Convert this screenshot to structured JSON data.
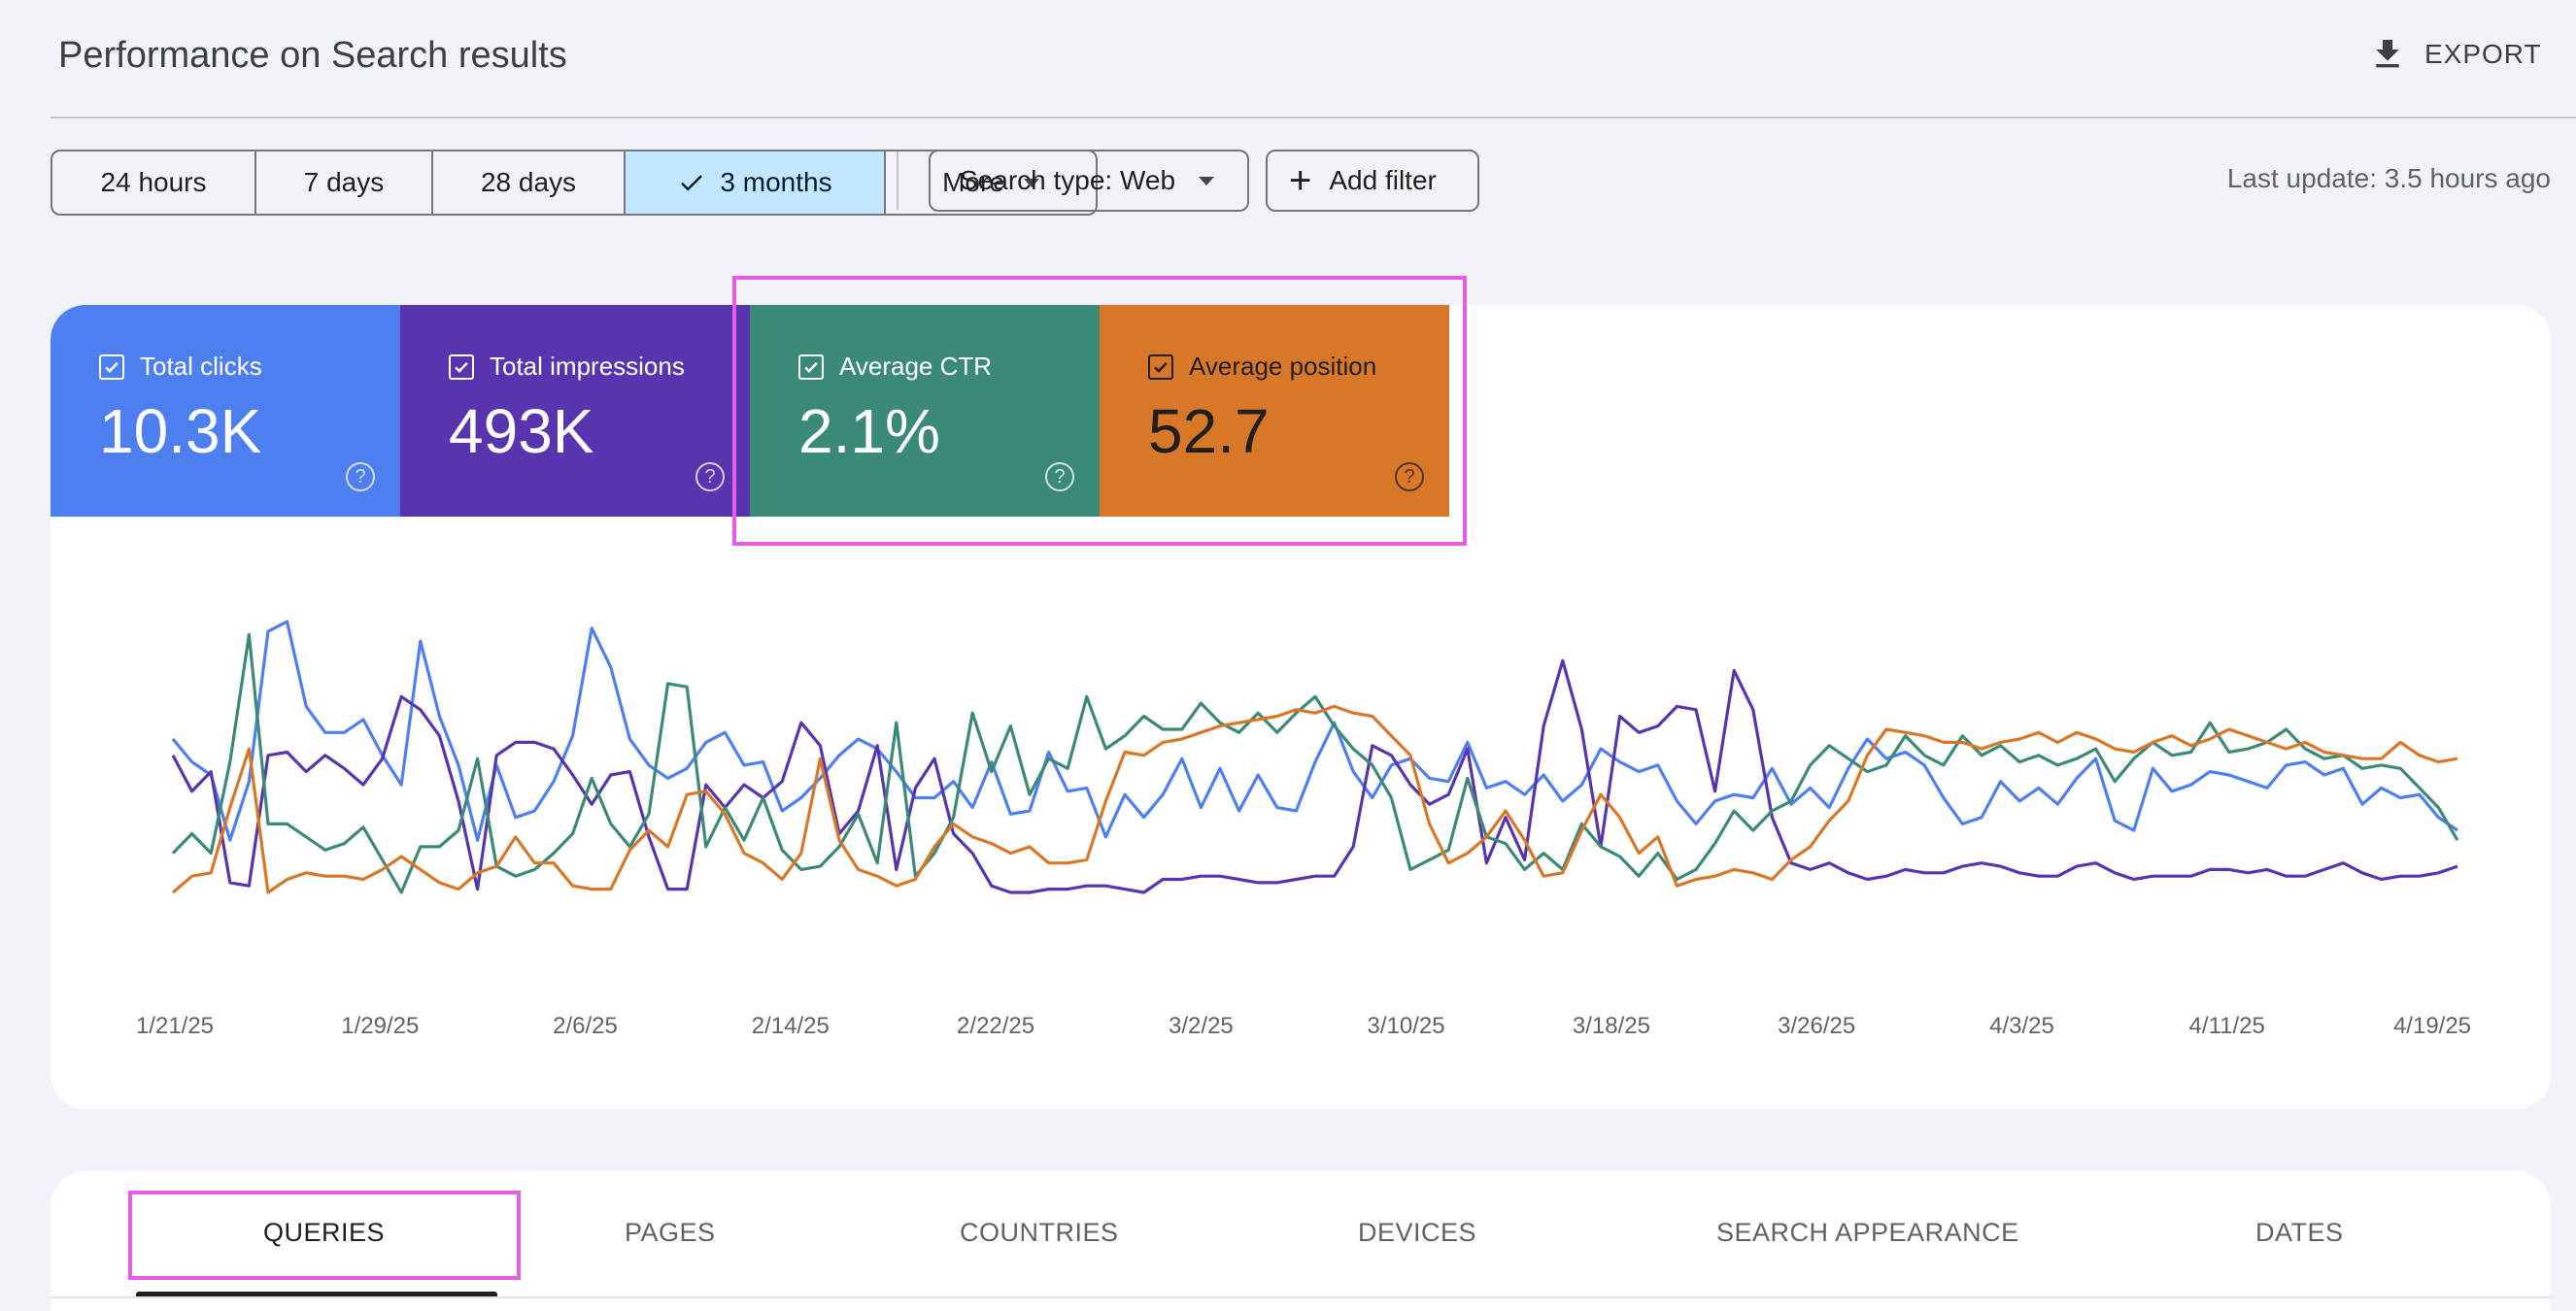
{
  "header": {
    "title": "Performance on Search results",
    "export_label": "EXPORT"
  },
  "toolbar": {
    "date_ranges": [
      "24 hours",
      "7 days",
      "28 days",
      "3 months",
      "More"
    ],
    "selected_range": "3 months",
    "search_type": "Search type: Web",
    "add_filter": "Add filter",
    "last_update": "Last update: 3.5 hours ago"
  },
  "metrics": [
    {
      "label": "Total clicks",
      "value": "10.3K",
      "color": "#4e7ff0",
      "checked": true
    },
    {
      "label": "Total impressions",
      "value": "493K",
      "color": "#5835ae",
      "checked": true
    },
    {
      "label": "Average CTR",
      "value": "2.1%",
      "color": "#3b8a78",
      "checked": true
    },
    {
      "label": "Average position",
      "value": "52.7",
      "color": "#d97728",
      "checked": true
    }
  ],
  "highlight_color": "#e85be7",
  "chart_data": {
    "type": "line",
    "x_ticks": [
      "1/21/25",
      "1/29/25",
      "2/6/25",
      "2/14/25",
      "2/22/25",
      "3/2/25",
      "3/10/25",
      "3/18/25",
      "3/26/25",
      "4/3/25",
      "4/11/25",
      "4/19/25"
    ],
    "grid": false,
    "series": [
      {
        "name": "Total clicks",
        "color": "#4e7ff0",
        "values": [
          0.61,
          0.54,
          0.5,
          0.3,
          0.48,
          0.94,
          0.97,
          0.71,
          0.63,
          0.63,
          0.67,
          0.56,
          0.47,
          0.91,
          0.68,
          0.53,
          0.3,
          0.53,
          0.37,
          0.39,
          0.48,
          0.62,
          0.95,
          0.83,
          0.61,
          0.53,
          0.49,
          0.52,
          0.6,
          0.63,
          0.53,
          0.54,
          0.39,
          0.43,
          0.49,
          0.56,
          0.61,
          0.58,
          0.51,
          0.43,
          0.43,
          0.48,
          0.4,
          0.54,
          0.38,
          0.39,
          0.57,
          0.45,
          0.46,
          0.31,
          0.44,
          0.37,
          0.44,
          0.55,
          0.4,
          0.52,
          0.39,
          0.5,
          0.4,
          0.39,
          0.54,
          0.66,
          0.51,
          0.43,
          0.53,
          0.55,
          0.49,
          0.48,
          0.6,
          0.46,
          0.48,
          0.44,
          0.5,
          0.42,
          0.47,
          0.58,
          0.54,
          0.51,
          0.53,
          0.42,
          0.35,
          0.42,
          0.44,
          0.43,
          0.52,
          0.41,
          0.46,
          0.4,
          0.52,
          0.61,
          0.55,
          0.57,
          0.53,
          0.43,
          0.35,
          0.37,
          0.48,
          0.42,
          0.46,
          0.41,
          0.49,
          0.55,
          0.36,
          0.33,
          0.52,
          0.45,
          0.47,
          0.51,
          0.5,
          0.48,
          0.46,
          0.53,
          0.54,
          0.5,
          0.52,
          0.41,
          0.46,
          0.43,
          0.44,
          0.37,
          0.33
        ]
      },
      {
        "name": "Total impressions",
        "color": "#5835ae",
        "values": [
          0.56,
          0.45,
          0.51,
          0.17,
          0.16,
          0.56,
          0.57,
          0.51,
          0.56,
          0.52,
          0.47,
          0.55,
          0.74,
          0.7,
          0.62,
          0.42,
          0.15,
          0.56,
          0.6,
          0.6,
          0.58,
          0.5,
          0.41,
          0.5,
          0.51,
          0.31,
          0.15,
          0.15,
          0.47,
          0.4,
          0.47,
          0.43,
          0.48,
          0.66,
          0.59,
          0.32,
          0.39,
          0.59,
          0.21,
          0.46,
          0.55,
          0.32,
          0.26,
          0.16,
          0.14,
          0.14,
          0.15,
          0.15,
          0.16,
          0.16,
          0.15,
          0.14,
          0.18,
          0.18,
          0.19,
          0.19,
          0.18,
          0.17,
          0.17,
          0.18,
          0.19,
          0.19,
          0.28,
          0.59,
          0.56,
          0.47,
          0.41,
          0.44,
          0.58,
          0.23,
          0.37,
          0.24,
          0.65,
          0.85,
          0.64,
          0.28,
          0.68,
          0.63,
          0.65,
          0.71,
          0.7,
          0.45,
          0.82,
          0.7,
          0.37,
          0.23,
          0.21,
          0.23,
          0.2,
          0.18,
          0.19,
          0.21,
          0.2,
          0.2,
          0.22,
          0.23,
          0.22,
          0.2,
          0.19,
          0.19,
          0.22,
          0.23,
          0.2,
          0.18,
          0.19,
          0.19,
          0.19,
          0.21,
          0.21,
          0.2,
          0.21,
          0.19,
          0.19,
          0.21,
          0.23,
          0.2,
          0.18,
          0.19,
          0.19,
          0.2,
          0.22
        ]
      },
      {
        "name": "Average CTR",
        "color": "#3b8a78",
        "values": [
          0.26,
          0.32,
          0.26,
          0.54,
          0.93,
          0.35,
          0.35,
          0.31,
          0.27,
          0.29,
          0.34,
          0.24,
          0.14,
          0.28,
          0.28,
          0.33,
          0.55,
          0.22,
          0.19,
          0.21,
          0.26,
          0.32,
          0.49,
          0.35,
          0.28,
          0.38,
          0.78,
          0.77,
          0.28,
          0.4,
          0.3,
          0.43,
          0.27,
          0.21,
          0.22,
          0.28,
          0.38,
          0.23,
          0.66,
          0.19,
          0.26,
          0.37,
          0.69,
          0.51,
          0.65,
          0.44,
          0.55,
          0.52,
          0.74,
          0.58,
          0.62,
          0.68,
          0.64,
          0.64,
          0.72,
          0.66,
          0.63,
          0.69,
          0.63,
          0.69,
          0.74,
          0.65,
          0.58,
          0.53,
          0.43,
          0.21,
          0.24,
          0.27,
          0.49,
          0.31,
          0.29,
          0.21,
          0.26,
          0.21,
          0.35,
          0.28,
          0.25,
          0.19,
          0.26,
          0.18,
          0.21,
          0.29,
          0.39,
          0.33,
          0.39,
          0.42,
          0.53,
          0.59,
          0.55,
          0.51,
          0.53,
          0.62,
          0.56,
          0.53,
          0.62,
          0.56,
          0.59,
          0.54,
          0.56,
          0.53,
          0.55,
          0.58,
          0.48,
          0.55,
          0.6,
          0.56,
          0.57,
          0.66,
          0.57,
          0.58,
          0.6,
          0.64,
          0.58,
          0.55,
          0.56,
          0.52,
          0.53,
          0.52,
          0.46,
          0.4,
          0.3
        ]
      },
      {
        "name": "Average position",
        "color": "#d97728",
        "values": [
          0.14,
          0.19,
          0.2,
          0.4,
          0.58,
          0.14,
          0.18,
          0.2,
          0.19,
          0.19,
          0.18,
          0.21,
          0.25,
          0.21,
          0.17,
          0.15,
          0.2,
          0.22,
          0.31,
          0.23,
          0.23,
          0.16,
          0.15,
          0.15,
          0.27,
          0.33,
          0.28,
          0.44,
          0.45,
          0.38,
          0.26,
          0.23,
          0.18,
          0.26,
          0.55,
          0.3,
          0.21,
          0.19,
          0.16,
          0.18,
          0.28,
          0.35,
          0.31,
          0.29,
          0.26,
          0.28,
          0.23,
          0.23,
          0.24,
          0.42,
          0.57,
          0.56,
          0.6,
          0.61,
          0.63,
          0.65,
          0.66,
          0.67,
          0.68,
          0.7,
          0.69,
          0.71,
          0.69,
          0.68,
          0.62,
          0.56,
          0.35,
          0.23,
          0.26,
          0.31,
          0.39,
          0.3,
          0.19,
          0.2,
          0.33,
          0.44,
          0.37,
          0.26,
          0.31,
          0.16,
          0.18,
          0.19,
          0.21,
          0.2,
          0.18,
          0.24,
          0.28,
          0.36,
          0.42,
          0.56,
          0.64,
          0.63,
          0.62,
          0.6,
          0.6,
          0.58,
          0.6,
          0.61,
          0.63,
          0.6,
          0.63,
          0.61,
          0.58,
          0.57,
          0.6,
          0.62,
          0.59,
          0.61,
          0.64,
          0.62,
          0.6,
          0.58,
          0.6,
          0.57,
          0.56,
          0.55,
          0.55,
          0.6,
          0.56,
          0.54,
          0.55
        ]
      }
    ]
  },
  "tabs": [
    "QUERIES",
    "PAGES",
    "COUNTRIES",
    "DEVICES",
    "SEARCH APPEARANCE",
    "DATES"
  ],
  "active_tab": "QUERIES"
}
